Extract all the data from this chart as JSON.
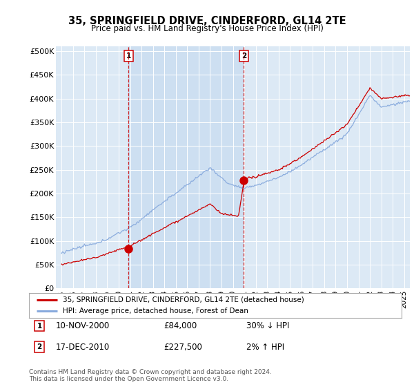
{
  "title": "35, SPRINGFIELD DRIVE, CINDERFORD, GL14 2TE",
  "subtitle": "Price paid vs. HM Land Registry's House Price Index (HPI)",
  "ylabel_ticks": [
    "£0",
    "£50K",
    "£100K",
    "£150K",
    "£200K",
    "£250K",
    "£300K",
    "£350K",
    "£400K",
    "£450K",
    "£500K"
  ],
  "ytick_values": [
    0,
    50000,
    100000,
    150000,
    200000,
    250000,
    300000,
    350000,
    400000,
    450000,
    500000
  ],
  "ylim": [
    0,
    510000
  ],
  "xlim_start": 1994.5,
  "xlim_end": 2025.5,
  "background_color": "#dce9f5",
  "shade_color": "#cce0f0",
  "grid_color": "#ffffff",
  "line1_color": "#cc0000",
  "line2_color": "#88aadd",
  "marker_color": "#cc0000",
  "vline_color": "#cc0000",
  "transaction1_x": 2000.87,
  "transaction1_y": 84000,
  "transaction1_label": "1",
  "transaction2_x": 2010.96,
  "transaction2_y": 227500,
  "transaction2_label": "2",
  "legend_line1": "35, SPRINGFIELD DRIVE, CINDERFORD, GL14 2TE (detached house)",
  "legend_line2": "HPI: Average price, detached house, Forest of Dean",
  "annotation1_date": "10-NOV-2000",
  "annotation1_price": "£84,000",
  "annotation1_hpi": "30% ↓ HPI",
  "annotation2_date": "17-DEC-2010",
  "annotation2_price": "£227,500",
  "annotation2_hpi": "2% ↑ HPI",
  "footer": "Contains HM Land Registry data © Crown copyright and database right 2024.\nThis data is licensed under the Open Government Licence v3.0.",
  "x_tick_years": [
    1995,
    1996,
    1997,
    1998,
    1999,
    2000,
    2001,
    2002,
    2003,
    2004,
    2005,
    2006,
    2007,
    2008,
    2009,
    2010,
    2011,
    2012,
    2013,
    2014,
    2015,
    2016,
    2017,
    2018,
    2019,
    2020,
    2021,
    2022,
    2023,
    2024,
    2025
  ]
}
